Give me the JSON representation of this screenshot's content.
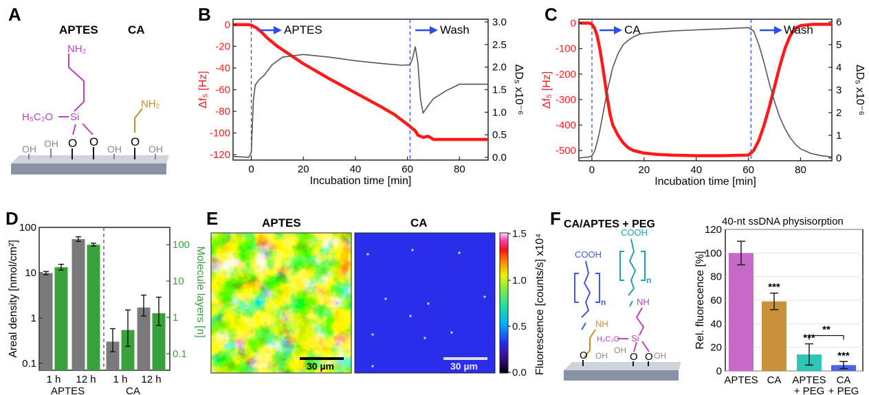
{
  "panels": {
    "A": {
      "label": "A",
      "titles": [
        "APTES",
        "CA"
      ],
      "nh2_1": "NH₂",
      "nh2_2": "NH₂",
      "eto": "H₅C₂O",
      "si": "Si",
      "oh": "OH",
      "o": "O"
    },
    "B": {
      "label": "B",
      "start": "APTES",
      "wash": "Wash"
    },
    "C": {
      "label": "C",
      "start": "CA",
      "wash": "Wash"
    },
    "D": {
      "label": "D"
    },
    "E": {
      "label": "E",
      "left_title": "APTES",
      "right_title": "CA",
      "scale": "30 µm",
      "cbar_label": "Fluorescence [counts/s] x10⁴",
      "cbar_ticks": [
        "1.5",
        "1.0",
        "0.5",
        "0.0"
      ]
    },
    "F": {
      "label": "F",
      "title": "CA/APTES + PEG",
      "cooh": "COOH",
      "nh": "NH",
      "n": "n",
      "eto": "H₅C₂O",
      "si": "Si"
    }
  },
  "colors": {
    "red": "#ff1a1a",
    "gray": "#555555",
    "bar_gray": "#7a7a7a",
    "bar_green": "#3aa23a",
    "aptes": "#c86bc8",
    "ca": "#c8913a",
    "aptes_peg": "#2ec4b6",
    "ca_peg": "#4a64e6",
    "magenta": "#c040c0",
    "orange": "#d08a20",
    "blue": "#3a5ae0",
    "teal": "#1aa6a6"
  },
  "chart_data": [
    {
      "panel": "B",
      "type": "line",
      "xlabel": "Incubation time [min]",
      "ylabel": "Δf₅ [Hz]",
      "y2label": "ΔD₅ x10⁻⁶",
      "xlim": [
        -7,
        91
      ],
      "ylim": [
        -125,
        5
      ],
      "y2lim": [
        -0.06,
        3.06
      ],
      "xticks": [
        0,
        20,
        40,
        60,
        80
      ],
      "yticks": [
        0,
        -20,
        -40,
        -60,
        -80,
        -100,
        -120
      ],
      "y2ticks": [
        0.0,
        0.5,
        1.0,
        1.5,
        2.0,
        2.5,
        3.0
      ],
      "vlines": [
        0,
        61
      ],
      "series": [
        {
          "axis": "y",
          "color": "#ff1a1a",
          "x": [
            -7,
            -1,
            0,
            2,
            4,
            6,
            8,
            10,
            20,
            30,
            40,
            50,
            55,
            60,
            62,
            63,
            64,
            66,
            68,
            70,
            80,
            91
          ],
          "y": [
            0,
            0,
            -0.5,
            -3,
            -7,
            -12,
            -16,
            -20,
            -36,
            -50,
            -63,
            -76,
            -83,
            -92,
            -96,
            -98,
            -102,
            -104,
            -103,
            -106,
            -106,
            -106
          ]
        },
        {
          "axis": "y2",
          "color": "#555555",
          "x": [
            -7,
            -1,
            0,
            0.8,
            1.5,
            3,
            5,
            8,
            12,
            20,
            30,
            40,
            50,
            58,
            61,
            62,
            63,
            64,
            65,
            66,
            68,
            70,
            75,
            80,
            91
          ],
          "y": [
            0.02,
            0.0,
            0.1,
            1.25,
            1.6,
            1.72,
            1.82,
            2.05,
            2.22,
            2.28,
            2.22,
            2.14,
            2.08,
            2.04,
            2.05,
            2.2,
            2.45,
            2.1,
            1.3,
            0.98,
            1.15,
            1.3,
            1.48,
            1.62,
            1.62
          ]
        }
      ]
    },
    {
      "panel": "C",
      "type": "line",
      "xlabel": "Incubation time [min]",
      "ylabel": "Δf₅ [Hz]",
      "y2label": "ΔD₅ x10⁻⁶",
      "xlim": [
        -5,
        92
      ],
      "ylim": [
        -540,
        15
      ],
      "y2lim": [
        -0.12,
        6.12
      ],
      "xticks": [
        0,
        20,
        40,
        60,
        80
      ],
      "yticks": [
        0,
        -100,
        -200,
        -300,
        -400,
        -500
      ],
      "y2ticks": [
        0,
        1,
        2,
        3,
        4,
        5,
        6
      ],
      "vlines": [
        0,
        61
      ],
      "series": [
        {
          "axis": "y",
          "color": "#ff1a1a",
          "x": [
            -5,
            -1,
            0,
            1,
            2,
            3,
            4,
            5,
            6,
            7,
            8,
            10,
            12,
            14,
            16,
            18,
            20,
            25,
            30,
            40,
            50,
            60,
            62,
            64,
            66,
            68,
            70,
            72,
            74,
            76,
            78,
            80,
            85,
            92
          ],
          "y": [
            0,
            0,
            -5,
            -20,
            -50,
            -100,
            -160,
            -230,
            -300,
            -360,
            -400,
            -440,
            -470,
            -490,
            -500,
            -505,
            -510,
            -515,
            -518,
            -520,
            -520,
            -518,
            -500,
            -460,
            -400,
            -330,
            -250,
            -170,
            -100,
            -50,
            -20,
            -10,
            -5,
            -5
          ]
        },
        {
          "axis": "y2",
          "color": "#555555",
          "x": [
            -5,
            -1,
            0,
            1,
            2,
            3,
            4,
            5,
            6,
            8,
            10,
            12,
            14,
            16,
            18,
            20,
            25,
            30,
            40,
            50,
            60,
            62,
            64,
            66,
            68,
            70,
            72,
            74,
            76,
            78,
            80,
            84,
            88,
            92
          ],
          "y": [
            0.0,
            0.05,
            0.1,
            0.3,
            0.7,
            1.2,
            1.8,
            2.4,
            3.0,
            4.0,
            4.6,
            5.0,
            5.2,
            5.35,
            5.45,
            5.5,
            5.55,
            5.6,
            5.65,
            5.7,
            5.75,
            5.6,
            5.0,
            4.2,
            3.3,
            2.5,
            1.8,
            1.3,
            0.9,
            0.6,
            0.4,
            0.2,
            0.1,
            0.05
          ]
        }
      ]
    },
    {
      "panel": "D",
      "type": "bar",
      "categories": [
        "1 h",
        "12 h",
        "1 h",
        "12 h"
      ],
      "groups": [
        "APTES",
        "CA"
      ],
      "ylabel": "Areal density [nmol/cm²]",
      "y2label": "Molecule layers [n]",
      "ylim": [
        0.07,
        100
      ],
      "y2lim": [
        0.035,
        300
      ],
      "yscale": "log",
      "yticks": [
        "0.1",
        "1",
        "10",
        "100"
      ],
      "y2ticks": [
        "0.1",
        "1",
        "10",
        "100"
      ],
      "series": [
        {
          "name": "",
          "color": "#7a7a7a",
          "axis": "y",
          "values": [
            9.8,
            55,
            0.3,
            1.7
          ],
          "err_low": [
            9.0,
            49,
            0.18,
            1.1
          ],
          "err_high": [
            10.6,
            62,
            0.58,
            3.2
          ]
        },
        {
          "name": "",
          "color": "#3aa23a",
          "axis": "y2",
          "values": [
            24,
            100,
            0.45,
            1.3
          ],
          "err_low": [
            20,
            92,
            0.16,
            0.6
          ],
          "err_high": [
            29,
            110,
            1.6,
            3.6
          ]
        }
      ]
    },
    {
      "panel": "F",
      "type": "bar",
      "title": "40-nt ssDNA physisorption",
      "categories": [
        "APTES",
        "CA",
        "APTES\n+ PEG",
        "CA\n+ PEG"
      ],
      "ylabel": "Rel. fluorecence [%]",
      "ylim": [
        0,
        120
      ],
      "yticks": [
        0,
        20,
        40,
        60,
        80,
        100,
        120
      ],
      "values": [
        100,
        59,
        14,
        5
      ],
      "errors": [
        10,
        7,
        9,
        3
      ],
      "annotations": [
        "",
        "***",
        "***",
        "***"
      ],
      "bracket": {
        "from": 2,
        "to": 3,
        "label": "**"
      }
    }
  ]
}
